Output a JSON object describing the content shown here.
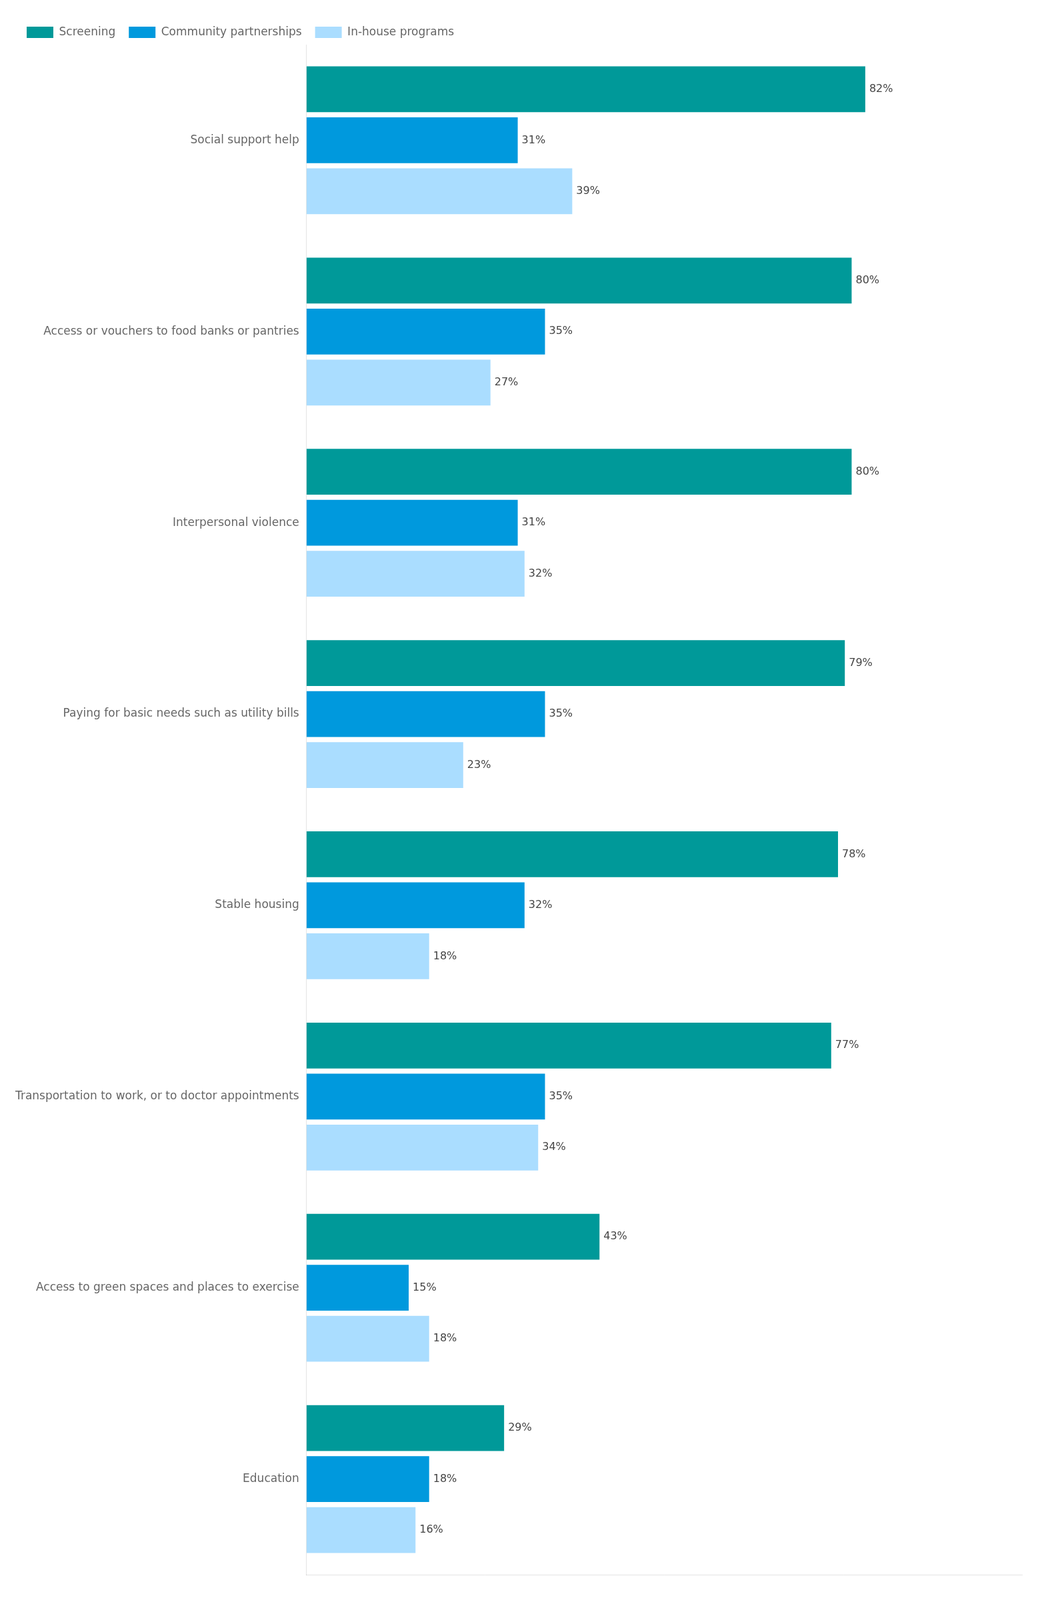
{
  "chart_data": {
    "type": "bar",
    "orientation": "horizontal",
    "categories": [
      "Social support help",
      "Access or vouchers to food banks or pantries",
      "Interpersonal violence",
      "Paying for basic needs such as utility bills",
      "Stable housing",
      "Transportation to work, or to doctor appointments",
      "Access to green spaces and places to exercise",
      "Education"
    ],
    "series": [
      {
        "name": "Screening",
        "color": "#009999",
        "values": [
          82,
          80,
          80,
          79,
          78,
          77,
          43,
          29
        ],
        "value_labels": [
          "82%",
          "80%",
          "80%",
          "79%",
          "78%",
          "77%",
          "43%",
          "29%"
        ]
      },
      {
        "name": "Community partnerships",
        "color": "#0099DD",
        "values": [
          31,
          35,
          31,
          35,
          32,
          35,
          15,
          18
        ],
        "value_labels": [
          "31%",
          "35%",
          "31%",
          "35%",
          "32%",
          "35%",
          "15%",
          "18%"
        ]
      },
      {
        "name": "In-house programs",
        "color": "#AADDFF",
        "values": [
          39,
          27,
          32,
          23,
          18,
          34,
          18,
          16
        ],
        "value_labels": [
          "39%",
          "27%",
          "32%",
          "23%",
          "18%",
          "34%",
          "18%",
          "16%"
        ]
      }
    ],
    "xlim": [
      0,
      105
    ],
    "grid": false,
    "legend": "top",
    "data_labels": true,
    "tick_labels": "y"
  }
}
